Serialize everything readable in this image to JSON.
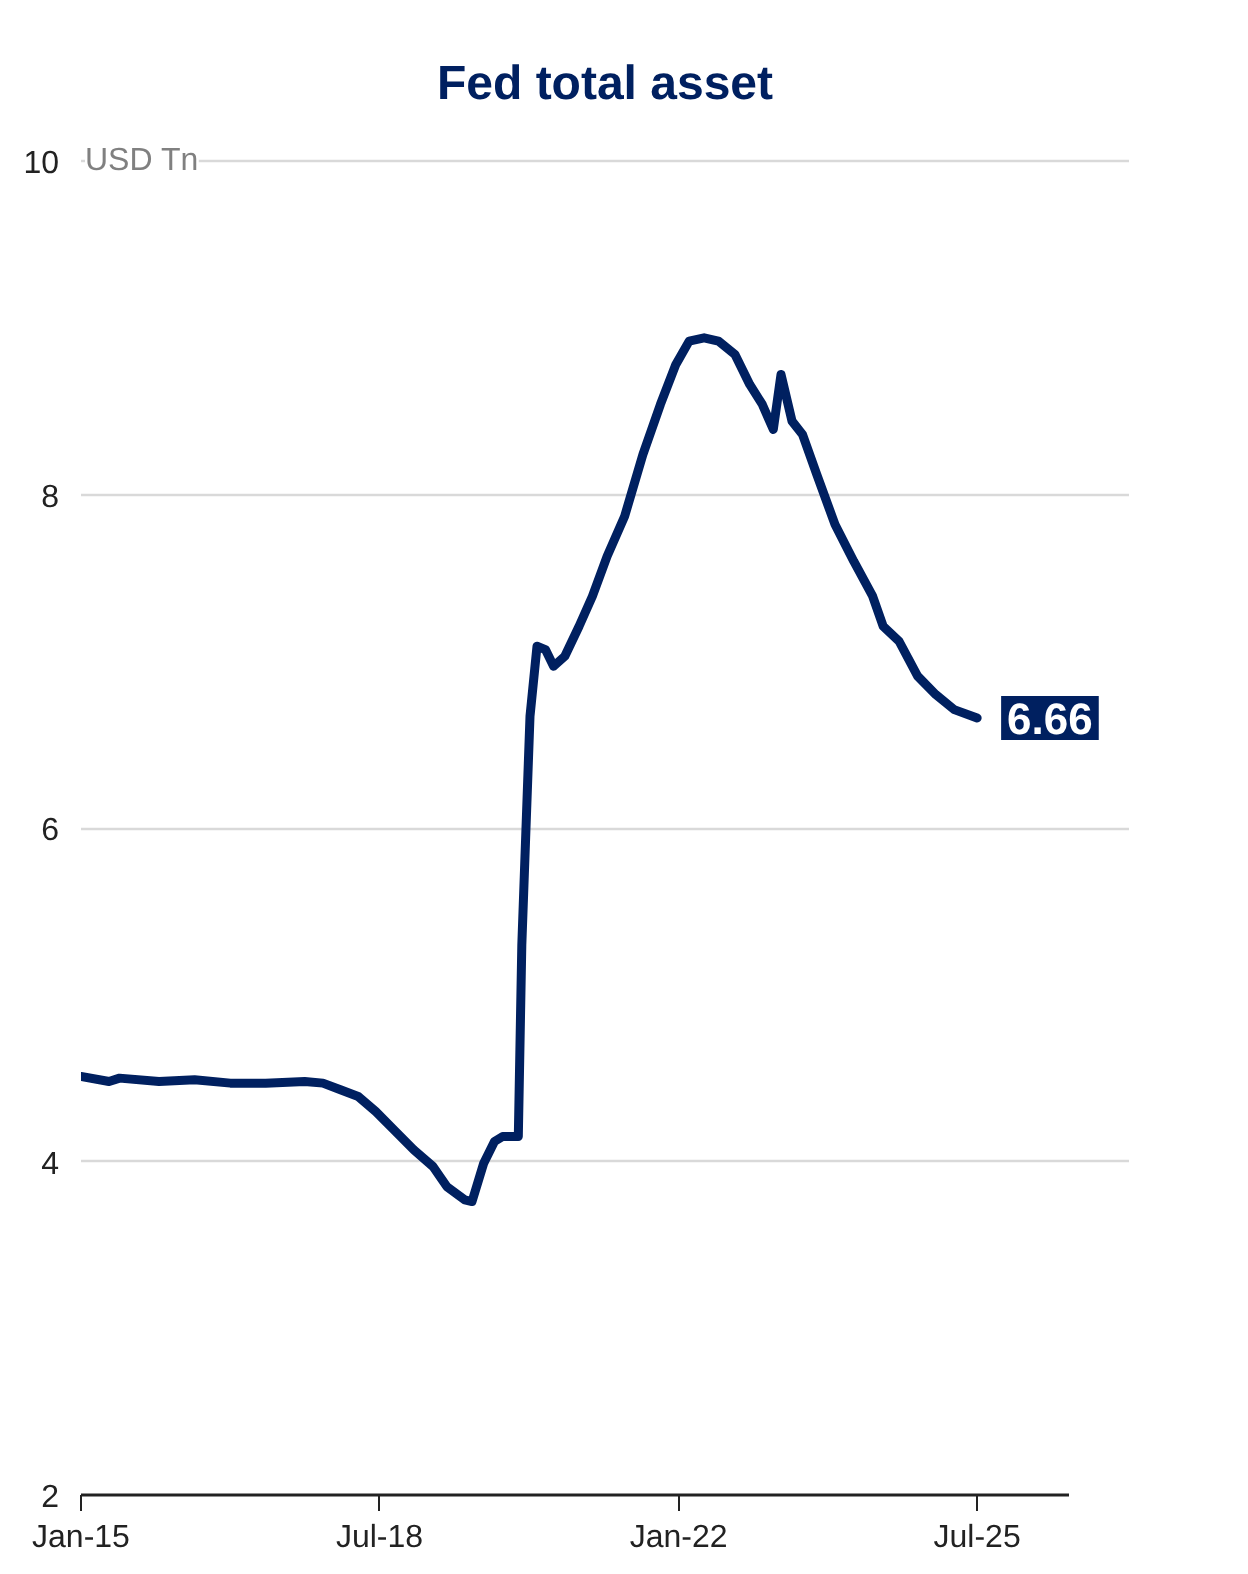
{
  "chart_data": {
    "type": "line",
    "title": "Fed total asset",
    "ylabel": "USD Tn",
    "x": [
      "2015-01-01",
      "2015-05-01",
      "2015-06-15",
      "2015-12-01",
      "2016-05-01",
      "2016-10-01",
      "2017-03-01",
      "2017-08-15",
      "2017-11-01",
      "2018-01-15",
      "2018-04-01",
      "2018-06-15",
      "2018-09-01",
      "2018-11-25",
      "2019-02-15",
      "2019-04-15",
      "2019-07-01",
      "2019-08-01",
      "2019-09-20",
      "2019-11-05",
      "2019-12-10",
      "2020-02-15",
      "2020-03-01",
      "2020-04-05",
      "2020-05-05",
      "2020-06-10",
      "2020-07-15",
      "2020-09-01",
      "2020-11-01",
      "2020-12-28",
      "2021-03-01",
      "2021-05-15",
      "2021-08-01",
      "2021-10-15",
      "2021-12-20",
      "2022-02-15",
      "2022-04-20",
      "2022-06-20",
      "2022-08-30",
      "2022-11-01",
      "2022-12-25",
      "2023-02-10",
      "2023-03-15",
      "2023-05-01",
      "2023-06-15",
      "2023-08-15",
      "2023-11-01",
      "2024-01-20",
      "2024-04-10",
      "2024-05-25",
      "2024-08-01",
      "2024-10-20",
      "2025-01-05",
      "2025-03-25",
      "2025-07-01"
    ],
    "series": [
      {
        "color": "#002060",
        "values": [
          4.51,
          4.48,
          4.5,
          4.48,
          4.49,
          4.47,
          4.47,
          4.48,
          4.47,
          4.43,
          4.39,
          4.3,
          4.19,
          4.07,
          3.97,
          3.85,
          3.77,
          3.76,
          3.99,
          4.12,
          4.15,
          4.15,
          5.3,
          6.67,
          7.09,
          7.07,
          6.97,
          7.03,
          7.21,
          7.39,
          7.63,
          7.87,
          8.24,
          8.54,
          8.78,
          8.92,
          8.94,
          8.92,
          8.84,
          8.66,
          8.54,
          8.39,
          8.72,
          8.44,
          8.36,
          8.12,
          7.82,
          7.6,
          7.39,
          7.21,
          7.12,
          6.91,
          6.8,
          6.71,
          6.66
        ]
      }
    ],
    "xlim": [
      "2015-01-01",
      "2026-08-01"
    ],
    "xticks": [
      {
        "value": "2015-01-01",
        "label": "Jan-15"
      },
      {
        "value": "2018-07-01",
        "label": "Jul-18"
      },
      {
        "value": "2022-01-01",
        "label": "Jan-22"
      },
      {
        "value": "2025-07-01",
        "label": "Jul-25"
      }
    ],
    "ylim": [
      2,
      10
    ],
    "yticks": [
      2,
      4,
      6,
      8,
      10
    ],
    "grid": "y",
    "annotations": [
      {
        "text": "6.66",
        "x": "2025-07-01",
        "y": 6.66
      }
    ]
  }
}
